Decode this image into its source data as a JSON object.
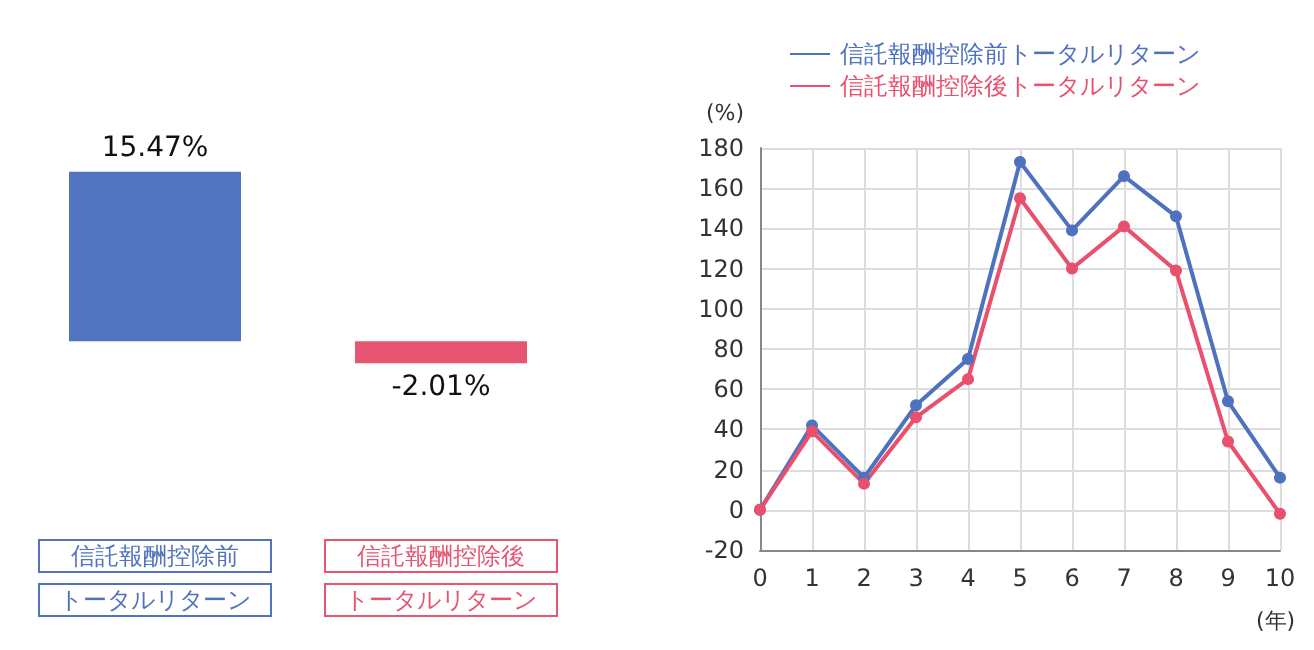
{
  "chart_data": [
    {
      "type": "bar",
      "categories": [
        "信託報酬控除前トータルリターン",
        "信託報酬控除後トータルリターン"
      ],
      "values": [
        15.47,
        -2.01
      ],
      "colors": [
        "#5274be",
        "#e65672"
      ],
      "value_labels": [
        "15.47%",
        "-2.01%"
      ],
      "grid": false,
      "legend": false
    },
    {
      "type": "line",
      "x": [
        0,
        1,
        2,
        3,
        4,
        5,
        6,
        7,
        8,
        9,
        10
      ],
      "series": [
        {
          "name": "信託報酬控除前トータルリターン",
          "color": "#4e72be",
          "values": [
            0,
            42,
            16,
            52,
            75,
            173,
            139,
            166,
            146,
            54,
            16
          ]
        },
        {
          "name": "信託報酬控除後トータルリターン",
          "color": "#e8506e",
          "values": [
            0,
            39,
            13,
            46,
            65,
            155,
            120,
            141,
            119,
            34,
            -2
          ]
        }
      ],
      "xlim": [
        0,
        10
      ],
      "xticks": [
        0,
        1,
        2,
        3,
        4,
        5,
        6,
        7,
        8,
        9,
        10
      ],
      "ylim": [
        -20,
        180
      ],
      "yticks": [
        -20,
        0,
        20,
        40,
        60,
        80,
        100,
        120,
        140,
        160,
        180
      ],
      "xlabel": "(年)",
      "ylabel": "(%)",
      "grid": true,
      "legend": "top",
      "marker": "circle",
      "line_style": "solid"
    }
  ]
}
